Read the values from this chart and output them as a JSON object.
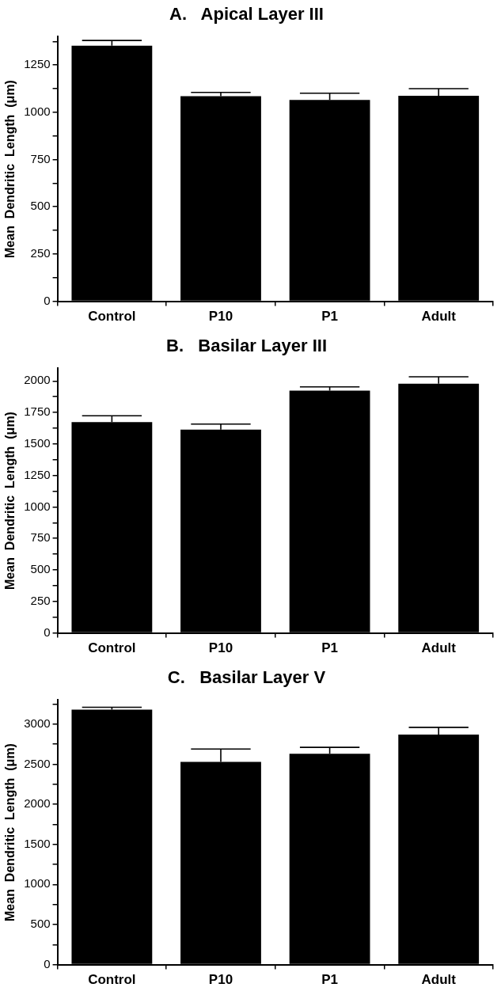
{
  "chart_data": [
    {
      "type": "bar",
      "title": "A.   Apical Layer III",
      "ylabel": "Mean  Dendritic  Length  (μm)",
      "categories": [
        "Control",
        "P10",
        "P1",
        "Adult"
      ],
      "values": [
        1352,
        1085,
        1066,
        1088
      ],
      "errors": [
        [
          1352,
          1380
        ],
        [
          1085,
          1105
        ],
        [
          1066,
          1101
        ],
        [
          1088,
          1125
        ]
      ],
      "color": "#000000",
      "ylim": [
        0,
        1400
      ],
      "yticks": [
        0,
        {
          "value": 125,
          "label": null
        },
        250,
        {
          "value": 375,
          "label": null
        },
        500,
        {
          "value": 625,
          "label": null
        },
        750,
        {
          "value": 875,
          "label": null
        },
        1000,
        {
          "value": 1125,
          "label": null
        },
        1250,
        {
          "value": 1375,
          "label": null
        }
      ],
      "grid": false,
      "legend": false
    },
    {
      "type": "bar",
      "title": "B.   Basilar Layer III",
      "ylabel": "Mean  Dendritic  Length  (μm)",
      "categories": [
        "Control",
        "P10",
        "P1",
        "Adult"
      ],
      "values": [
        1674,
        1614,
        1923,
        1978
      ],
      "errors": [
        [
          1674,
          1724
        ],
        [
          1614,
          1658
        ],
        [
          1923,
          1953
        ],
        [
          1978,
          2033
        ]
      ],
      "color": "#000000",
      "ylim": [
        0,
        2100
      ],
      "yticks": [
        0,
        {
          "value": 125,
          "label": null
        },
        250,
        {
          "value": 375,
          "label": null
        },
        500,
        {
          "value": 625,
          "label": null
        },
        750,
        {
          "value": 875,
          "label": null
        },
        1000,
        {
          "value": 1125,
          "label": null
        },
        1250,
        {
          "value": 1375,
          "label": null
        },
        1500,
        {
          "value": 1625,
          "label": null
        },
        1750,
        {
          "value": 1875,
          "label": null
        },
        2000
      ],
      "grid": false,
      "legend": false
    },
    {
      "type": "bar",
      "title": "C.   Basilar Layer V",
      "ylabel": "Mean  Dendritic  Length  (μm)",
      "categories": [
        "Control",
        "P10",
        "P1",
        "Adult"
      ],
      "values": [
        3180,
        2530,
        2630,
        2870
      ],
      "errors": [
        [
          3180,
          3210
        ],
        [
          2530,
          2690
        ],
        [
          2630,
          2710
        ],
        [
          2870,
          2960
        ]
      ],
      "color": "#000000",
      "ylim": [
        0,
        3300
      ],
      "yticks": [
        0,
        {
          "value": 250,
          "label": null
        },
        500,
        {
          "value": 750,
          "label": null
        },
        1000,
        {
          "value": 1250,
          "label": null
        },
        1500,
        {
          "value": 1750,
          "label": null
        },
        2000,
        {
          "value": 2250,
          "label": null
        },
        2500,
        {
          "value": 2750,
          "label": null
        },
        3000,
        {
          "value": 3250,
          "label": null
        }
      ],
      "grid": false,
      "legend": false
    }
  ]
}
